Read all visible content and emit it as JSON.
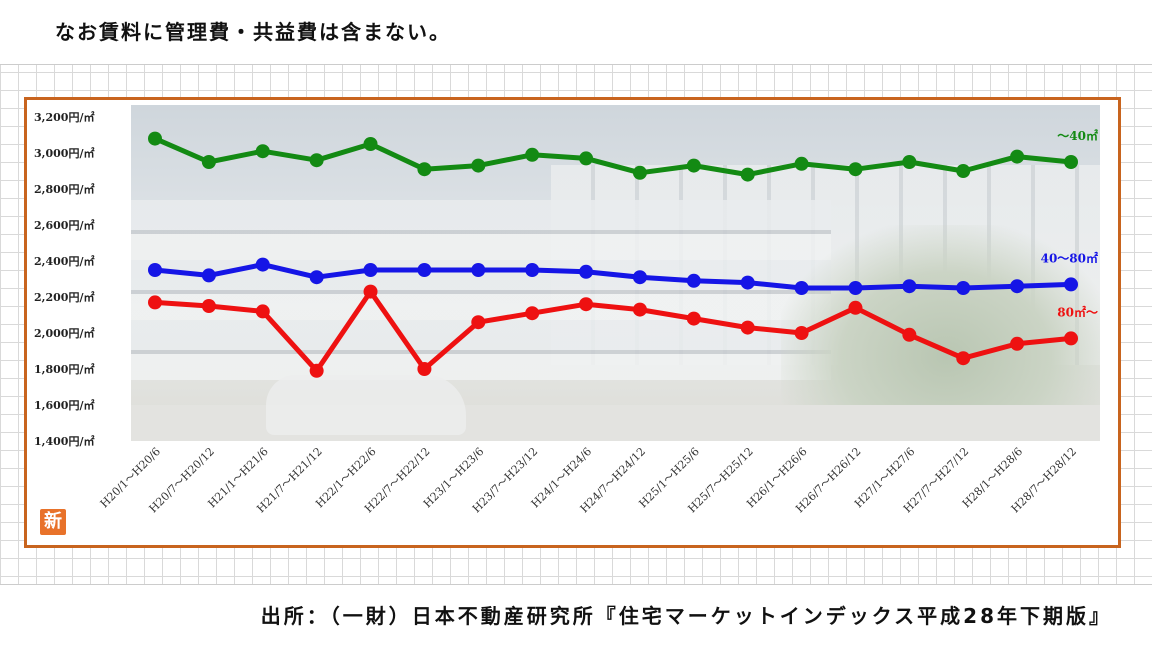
{
  "note": "なお賃料に管理費・共益費は含まない。",
  "source": "出所：（一財）日本不動産研究所『住宅マーケットインデックス平成28年下期版』",
  "badge": "新",
  "colors": {
    "frame": "#c8641e",
    "small": "#138a13",
    "medium": "#1515e6",
    "large": "#ee1111"
  },
  "chart_data": {
    "type": "line",
    "title": "",
    "xlabel": "",
    "ylabel": "",
    "ylim": [
      1400,
      3200
    ],
    "yticks": [
      "3,200円/㎡",
      "3,000円/㎡",
      "2,800円/㎡",
      "2,600円/㎡",
      "2,400円/㎡",
      "2,200円/㎡",
      "2,000円/㎡",
      "1,800円/㎡",
      "1,600円/㎡",
      "1,400円/㎡"
    ],
    "ytick_values": [
      3200,
      3000,
      2800,
      2600,
      2400,
      2200,
      2000,
      1800,
      1600,
      1400
    ],
    "categories": [
      "H20/1～H20/6",
      "H20/7～H20/12",
      "H21/1～H21/6",
      "H21/7～H21/12",
      "H22/1～H22/6",
      "H22/7～H22/12",
      "H23/1～H23/6",
      "H23/7～H23/12",
      "H24/1～H24/6",
      "H24/7～H24/12",
      "H25/1～H25/6",
      "H25/7～H25/12",
      "H26/1～H26/6",
      "H26/7～H26/12",
      "H27/1～H27/6",
      "H27/7～H27/12",
      "H28/1～H28/6",
      "H28/7～H28/12"
    ],
    "series": [
      {
        "name": "～40㎡",
        "color": "#138a13",
        "values": [
          3080,
          2950,
          3010,
          2960,
          3050,
          2910,
          2930,
          2990,
          2970,
          2890,
          2930,
          2880,
          2940,
          2910,
          2950,
          2900,
          2980,
          2950
        ]
      },
      {
        "name": "40～80㎡",
        "color": "#1515e6",
        "values": [
          2350,
          2320,
          2380,
          2310,
          2350,
          2350,
          2350,
          2350,
          2340,
          2310,
          2290,
          2280,
          2250,
          2250,
          2260,
          2250,
          2260,
          2270
        ]
      },
      {
        "name": "80㎡～",
        "color": "#ee1111",
        "values": [
          2170,
          2150,
          2120,
          1790,
          2230,
          1800,
          2060,
          2110,
          2160,
          2130,
          2080,
          2030,
          2000,
          2140,
          1990,
          1860,
          1940,
          1970
        ]
      }
    ],
    "grid": true,
    "legend": "right-end labels"
  }
}
